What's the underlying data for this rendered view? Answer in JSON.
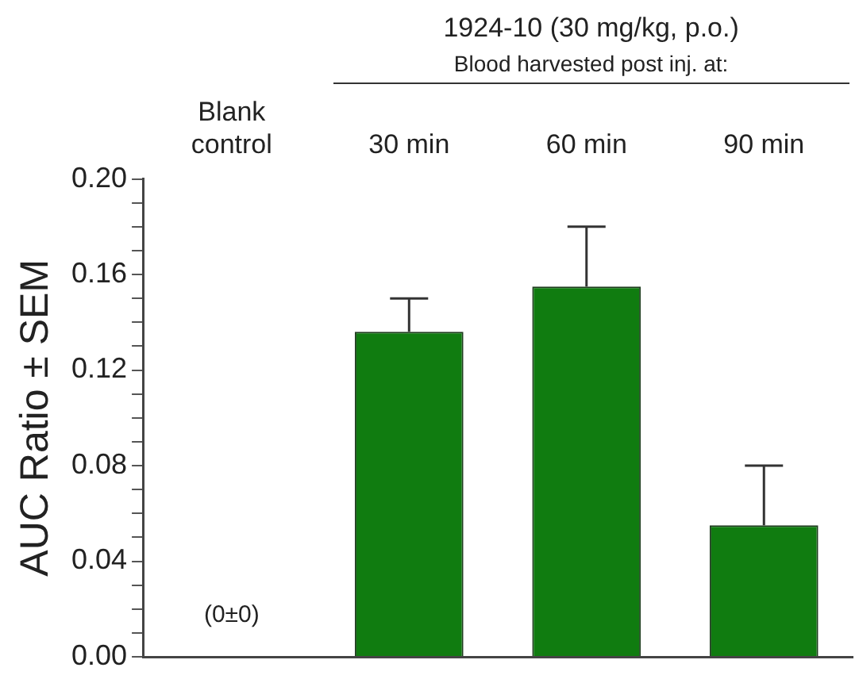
{
  "chart_data": {
    "type": "bar",
    "ylabel": "AUC Ratio ± SEM",
    "categories": [
      "Blank control",
      "30 min",
      "60 min",
      "90 min"
    ],
    "values": [
      0,
      0.136,
      0.155,
      0.055
    ],
    "errors": [
      null,
      [
        0.136,
        0.15
      ],
      [
        0.155,
        0.18
      ],
      [
        0.055,
        0.08
      ]
    ],
    "color": "#107c10",
    "ylim": [
      0,
      0.2
    ],
    "yticks": [
      {
        "value": 0,
        "label": "0.00"
      },
      {
        "value": 0.01,
        "label": null
      },
      {
        "value": 0.02,
        "label": null
      },
      {
        "value": 0.03,
        "label": null
      },
      0.04,
      {
        "value": 0.05,
        "label": null
      },
      {
        "value": 0.06,
        "label": null
      },
      {
        "value": 0.07,
        "label": null
      },
      0.08,
      {
        "value": 0.09,
        "label": null
      },
      {
        "value": 0.1,
        "label": null
      },
      {
        "value": 0.11,
        "label": null
      },
      0.12,
      {
        "value": 0.13,
        "label": null
      },
      {
        "value": 0.14,
        "label": null
      },
      {
        "value": 0.15,
        "label": null
      },
      0.16,
      {
        "value": 0.17,
        "label": null
      },
      {
        "value": 0.18,
        "label": null
      },
      {
        "value": 0.19,
        "label": null
      },
      {
        "value": 0.2,
        "label": "0.20"
      }
    ],
    "annotations": [
      "1924-10 (30 mg/kg, p.o.)",
      "Blood harvested post inj. at:",
      {
        "text": "(0±0)",
        "x": "Blank control",
        "y": 0
      }
    ],
    "grid": false,
    "legend": false
  }
}
